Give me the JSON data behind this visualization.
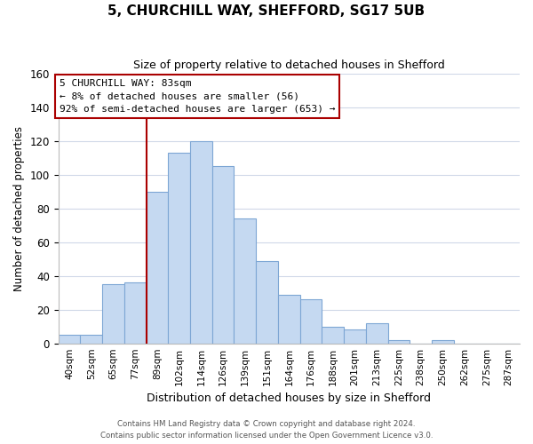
{
  "title": "5, CHURCHILL WAY, SHEFFORD, SG17 5UB",
  "subtitle": "Size of property relative to detached houses in Shefford",
  "xlabel": "Distribution of detached houses by size in Shefford",
  "ylabel": "Number of detached properties",
  "bar_labels": [
    "40sqm",
    "52sqm",
    "65sqm",
    "77sqm",
    "89sqm",
    "102sqm",
    "114sqm",
    "126sqm",
    "139sqm",
    "151sqm",
    "164sqm",
    "176sqm",
    "188sqm",
    "201sqm",
    "213sqm",
    "225sqm",
    "238sqm",
    "250sqm",
    "262sqm",
    "275sqm",
    "287sqm"
  ],
  "bar_values": [
    5,
    5,
    35,
    36,
    90,
    113,
    120,
    105,
    74,
    49,
    29,
    26,
    10,
    8,
    12,
    2,
    0,
    2,
    0,
    0,
    0
  ],
  "bar_color": "#c5d9f1",
  "bar_edge_color": "#7da6d4",
  "ylim": [
    0,
    160
  ],
  "yticks": [
    0,
    20,
    40,
    60,
    80,
    100,
    120,
    140,
    160
  ],
  "property_line_color": "#aa0000",
  "ann_line1": "5 CHURCHILL WAY: 83sqm",
  "ann_line2": "← 8% of detached houses are smaller (56)",
  "ann_line3": "92% of semi-detached houses are larger (653) →",
  "footer_line1": "Contains HM Land Registry data © Crown copyright and database right 2024.",
  "footer_line2": "Contains public sector information licensed under the Open Government Licence v3.0.",
  "background_color": "#ffffff",
  "grid_color": "#d0d8e8"
}
